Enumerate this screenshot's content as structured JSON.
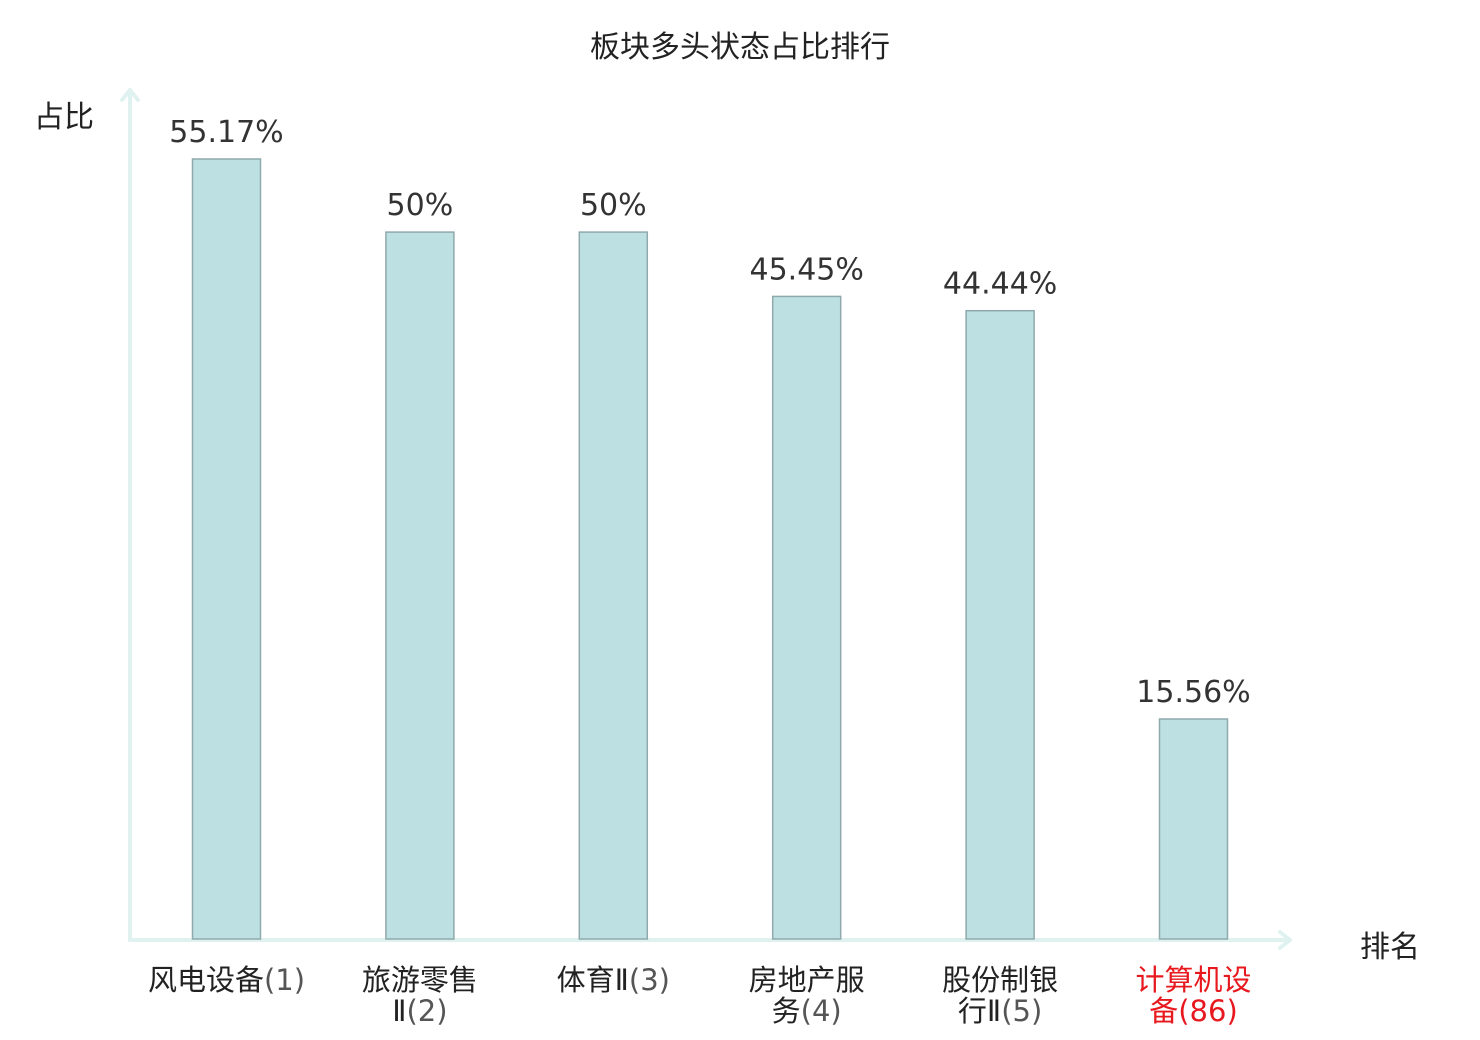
{
  "chart_data": {
    "type": "bar",
    "title": "板块多头状态占比排行",
    "ylabel": "占比",
    "xlabel": "排名",
    "ylim": [
      0,
      60
    ],
    "grid": false,
    "categories": [
      {
        "name": "风电设备",
        "rank": "(1)",
        "lines": [
          "风电设备(1)"
        ],
        "highlight": false
      },
      {
        "name": "旅游零售Ⅱ",
        "rank": "(2)",
        "lines": [
          "旅游零售",
          "Ⅱ(2)"
        ],
        "highlight": false
      },
      {
        "name": "体育Ⅱ",
        "rank": "(3)",
        "lines": [
          "体育Ⅱ(3)"
        ],
        "highlight": false
      },
      {
        "name": "房地产服务",
        "rank": "(4)",
        "lines": [
          "房地产服",
          "务(4)"
        ],
        "highlight": false
      },
      {
        "name": "股份制银行Ⅱ",
        "rank": "(5)",
        "lines": [
          "股份制银",
          "行Ⅱ(5)"
        ],
        "highlight": false
      },
      {
        "name": "计算机设备",
        "rank": "(86)",
        "lines": [
          "计算机设",
          "备(86)"
        ],
        "highlight": true
      }
    ],
    "values": [
      55.17,
      50,
      50,
      45.45,
      44.44,
      15.56
    ],
    "value_labels": [
      "55.17%",
      "50%",
      "50%",
      "45.45%",
      "44.44%",
      "15.56%"
    ],
    "colors": {
      "bar_fill": "#bde0e3",
      "bar_stroke": "#8fa9ac",
      "axis": "#e0f2f0",
      "highlight_text": "#e8191e"
    }
  }
}
